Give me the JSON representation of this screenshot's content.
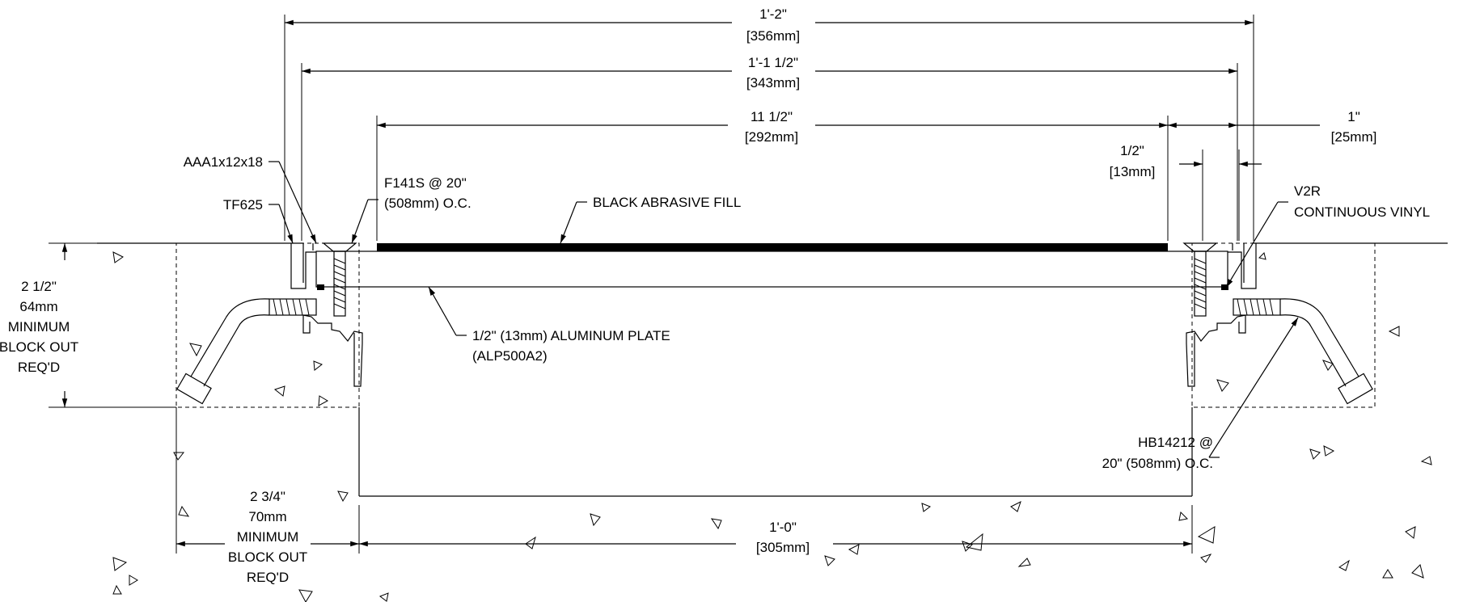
{
  "dimensions": {
    "overall": {
      "imperial": "1'-2\"",
      "metric": "[356mm]"
    },
    "frame": {
      "imperial": "1'-1 1/2\"",
      "metric": "[343mm]"
    },
    "plate": {
      "imperial": "11 1/2\"",
      "metric": "[292mm]"
    },
    "flange": {
      "imperial": "1\"",
      "metric": "[25mm]"
    },
    "gap": {
      "imperial": "1/2\"",
      "metric": "[13mm]"
    },
    "bottom": {
      "imperial": "1'-0\"",
      "metric": "[305mm]"
    },
    "blockout_depth": {
      "imperial": "2 1/2\"",
      "metric": "64mm",
      "note_1": "MINIMUM",
      "note_2": "BLOCK OUT",
      "note_3": "REQ'D"
    },
    "blockout_width": {
      "imperial": "2 3/4\"",
      "metric": "70mm",
      "note_1": "MINIMUM",
      "note_2": "BLOCK OUT",
      "note_3": "REQ'D"
    }
  },
  "callouts": {
    "angle": "AAA1x12x18",
    "frame": "TF625",
    "screw_1": "F141S @ 20\"",
    "screw_2": "(508mm) O.C.",
    "fill": "BLACK ABRASIVE FILL",
    "vinyl_1": "V2R",
    "vinyl_2": "CONTINUOUS VINYL",
    "plate_1": "1/2\" (13mm) ALUMINUM PLATE",
    "plate_2": "(ALP500A2)",
    "bolt_1": "HB14212 @",
    "bolt_2": "20\" (508mm) O.C."
  }
}
